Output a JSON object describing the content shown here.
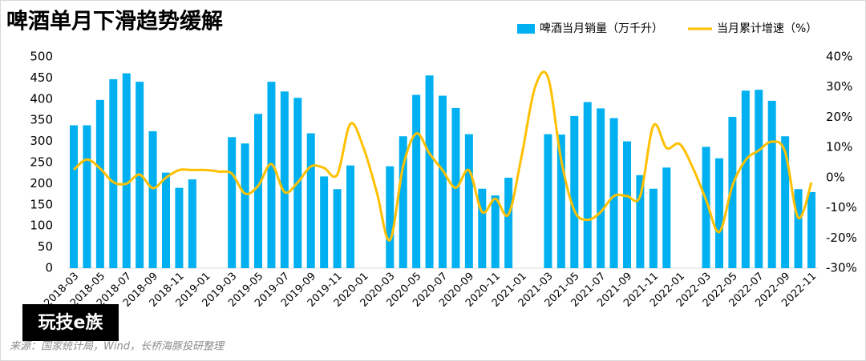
{
  "chart_data": {
    "type": "bar_line",
    "title": "啤酒单月下滑趋势缓解",
    "source": "来源：国家统计局，Wind，长桥海豚投研整理",
    "watermark": "玩技e族",
    "categories": [
      "2018-03",
      null,
      "2018-05",
      null,
      "2018-07",
      null,
      "2018-09",
      null,
      "2018-11",
      null,
      "2019-01",
      null,
      "2019-03",
      null,
      "2019-05",
      null,
      "2019-07",
      null,
      "2019-09",
      null,
      "2019-11",
      null,
      "2020-01",
      null,
      "2020-03",
      null,
      "2020-05",
      null,
      "2020-07",
      null,
      "2020-09",
      null,
      "2020-11",
      null,
      "2021-01",
      null,
      "2021-03",
      null,
      "2021-05",
      null,
      "2021-07",
      null,
      "2021-09",
      null,
      "2021-11",
      null,
      "2022-01",
      null,
      "2022-03",
      null,
      "2022-05",
      null,
      "2022-07",
      null,
      "2022-09",
      null,
      "2022-11"
    ],
    "series": [
      {
        "name": "啤酒当月销量（万千升）",
        "color": "#00b0f0",
        "type": "bar",
        "values": [
          338,
          338,
          398,
          447,
          461,
          441,
          324,
          226,
          190,
          210,
          null,
          null,
          310,
          295,
          365,
          441,
          418,
          403,
          319,
          217,
          187,
          243,
          null,
          null,
          241,
          312,
          410,
          456,
          408,
          379,
          317,
          188,
          172,
          214,
          null,
          null,
          317,
          316,
          360,
          393,
          378,
          355,
          300,
          220,
          188,
          238,
          null,
          null,
          287,
          260,
          358,
          420,
          422,
          396,
          312,
          187,
          180
        ]
      },
      {
        "name": "当月累计增速（%）",
        "color": "#ffc000",
        "type": "line",
        "axis": "y2",
        "values": [
          2.6,
          6,
          3,
          -1.5,
          -2,
          1,
          -3.5,
          0,
          2.5,
          2.5,
          2.5,
          2,
          1.3,
          -5.3,
          -2.7,
          4.5,
          -4.8,
          -1.6,
          3.7,
          3.2,
          1,
          17.8,
          9.8,
          -4.8,
          -20.7,
          3.7,
          14.6,
          8,
          2.4,
          -3.4,
          2.4,
          -11.4,
          -7,
          -12.2,
          7.2,
          29.7,
          33.2,
          5.8,
          -10.9,
          -14,
          -11.4,
          -6.1,
          -6.1,
          -6.1,
          17.2,
          9.8,
          11.1,
          3.2,
          -7.4,
          -18,
          -2.7,
          5.8,
          9,
          11.9,
          8.5,
          -13.3,
          -1.6
        ]
      }
    ],
    "ylim": [
      0,
      500
    ],
    "yticks": [
      0,
      50,
      100,
      150,
      200,
      250,
      300,
      350,
      400,
      450,
      500
    ],
    "y2lim": [
      -30,
      40
    ],
    "y2ticks": [
      {
        "value": -30,
        "label": "-30%"
      },
      {
        "value": -20,
        "label": "-20%"
      },
      {
        "value": -10,
        "label": "-10%"
      },
      {
        "value": 0,
        "label": "0%"
      },
      {
        "value": 10,
        "label": "10%"
      },
      {
        "value": 20,
        "label": "20%"
      },
      {
        "value": 30,
        "label": "30%"
      },
      {
        "value": 40,
        "label": "40%"
      }
    ],
    "legend": "top"
  }
}
